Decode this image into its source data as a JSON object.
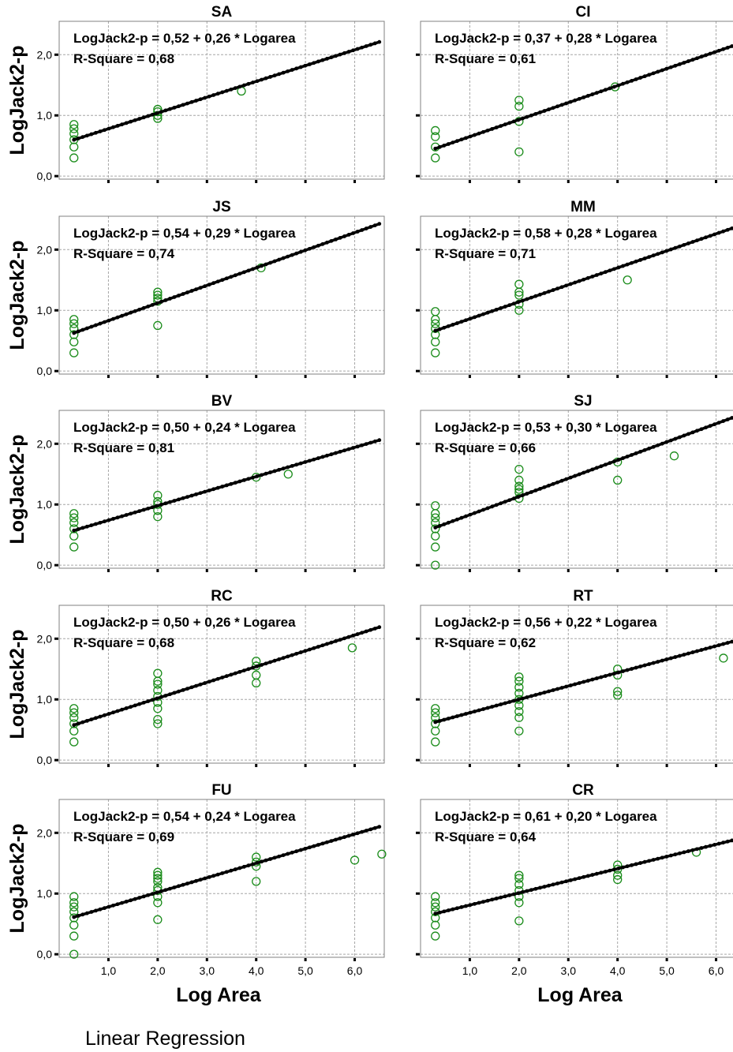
{
  "footer": {
    "caption": "Linear Regression"
  },
  "axis_text": {
    "ylabel": "LogJack2-p",
    "xlabel": "Log Area",
    "y_ticks": [
      {
        "value": 0.0,
        "label": "0,0"
      },
      {
        "value": 1.0,
        "label": "1,0"
      },
      {
        "value": 2.0,
        "label": "2,0"
      }
    ],
    "x_ticks": [
      {
        "value": 1.0,
        "label": "1,0"
      },
      {
        "value": 2.0,
        "label": "2,0"
      },
      {
        "value": 3.0,
        "label": "3,0"
      },
      {
        "value": 4.0,
        "label": "4,0"
      },
      {
        "value": 5.0,
        "label": "5,0"
      },
      {
        "value": 6.0,
        "label": "6,0"
      }
    ]
  },
  "chart_data": {
    "type": "scatter",
    "layout": "5x2 small multiples",
    "xlim": [
      0.0,
      6.6
    ],
    "ylim": [
      -0.05,
      2.55
    ],
    "grid": true,
    "panels": [
      {
        "title": "SA",
        "equation": "LogJack2-p = 0,52 + 0,26 * Logarea",
        "r_square": "R-Square = 0,68",
        "intercept": 0.52,
        "slope": 0.26,
        "fit_x_range": [
          0.3,
          6.5
        ],
        "points": [
          [
            0.3,
            0.3
          ],
          [
            0.3,
            0.48
          ],
          [
            0.3,
            0.6
          ],
          [
            0.3,
            0.7
          ],
          [
            0.3,
            0.78
          ],
          [
            0.3,
            0.85
          ],
          [
            2.0,
            0.95
          ],
          [
            2.0,
            1.0
          ],
          [
            2.0,
            1.06
          ],
          [
            2.0,
            1.1
          ],
          [
            3.7,
            1.4
          ]
        ]
      },
      {
        "title": "CI",
        "equation": "LogJack2-p = 0,37 + 0,28 * Logarea",
        "r_square": "R-Square = 0,61",
        "intercept": 0.37,
        "slope": 0.28,
        "fit_x_range": [
          0.3,
          6.5
        ],
        "points": [
          [
            0.3,
            0.3
          ],
          [
            0.3,
            0.48
          ],
          [
            0.3,
            0.65
          ],
          [
            0.3,
            0.75
          ],
          [
            2.0,
            0.4
          ],
          [
            2.0,
            0.9
          ],
          [
            2.0,
            1.15
          ],
          [
            2.0,
            1.25
          ],
          [
            3.95,
            1.47
          ]
        ]
      },
      {
        "title": "JS",
        "equation": "LogJack2-p = 0,54 + 0,29 * Logarea",
        "r_square": "R-Square = 0,74",
        "intercept": 0.54,
        "slope": 0.29,
        "fit_x_range": [
          0.3,
          6.5
        ],
        "points": [
          [
            0.3,
            0.3
          ],
          [
            0.3,
            0.48
          ],
          [
            0.3,
            0.6
          ],
          [
            0.3,
            0.7
          ],
          [
            0.3,
            0.78
          ],
          [
            0.3,
            0.85
          ],
          [
            2.0,
            0.75
          ],
          [
            2.0,
            1.15
          ],
          [
            2.0,
            1.2
          ],
          [
            2.0,
            1.25
          ],
          [
            2.0,
            1.3
          ],
          [
            4.1,
            1.7
          ]
        ]
      },
      {
        "title": "MM",
        "equation": "LogJack2-p = 0,58 + 0,28 * Logarea",
        "r_square": "R-Square = 0,71",
        "intercept": 0.58,
        "slope": 0.28,
        "fit_x_range": [
          0.3,
          6.5
        ],
        "points": [
          [
            0.3,
            0.3
          ],
          [
            0.3,
            0.48
          ],
          [
            0.3,
            0.6
          ],
          [
            0.3,
            0.7
          ],
          [
            0.3,
            0.78
          ],
          [
            0.3,
            0.85
          ],
          [
            0.3,
            0.98
          ],
          [
            2.0,
            1.0
          ],
          [
            2.0,
            1.1
          ],
          [
            2.0,
            1.25
          ],
          [
            2.0,
            1.3
          ],
          [
            2.0,
            1.43
          ],
          [
            4.2,
            1.5
          ]
        ]
      },
      {
        "title": "BV",
        "equation": "LogJack2-p = 0,50 + 0,24 * Logarea",
        "r_square": "R-Square = 0,81",
        "intercept": 0.5,
        "slope": 0.24,
        "fit_x_range": [
          0.3,
          6.5
        ],
        "points": [
          [
            0.3,
            0.3
          ],
          [
            0.3,
            0.48
          ],
          [
            0.3,
            0.6
          ],
          [
            0.3,
            0.7
          ],
          [
            0.3,
            0.78
          ],
          [
            0.3,
            0.85
          ],
          [
            2.0,
            0.8
          ],
          [
            2.0,
            0.9
          ],
          [
            2.0,
            1.0
          ],
          [
            2.0,
            1.05
          ],
          [
            2.0,
            1.15
          ],
          [
            4.0,
            1.45
          ],
          [
            4.65,
            1.5
          ]
        ]
      },
      {
        "title": "SJ",
        "equation": "LogJack2-p = 0,53 + 0,30 * Logarea",
        "r_square": "R-Square = 0,66",
        "intercept": 0.53,
        "slope": 0.3,
        "fit_x_range": [
          0.3,
          6.5
        ],
        "points": [
          [
            0.3,
            0.0
          ],
          [
            0.3,
            0.3
          ],
          [
            0.3,
            0.48
          ],
          [
            0.3,
            0.6
          ],
          [
            0.3,
            0.7
          ],
          [
            0.3,
            0.78
          ],
          [
            0.3,
            0.85
          ],
          [
            0.3,
            0.98
          ],
          [
            2.0,
            1.1
          ],
          [
            2.0,
            1.2
          ],
          [
            2.0,
            1.25
          ],
          [
            2.0,
            1.3
          ],
          [
            2.0,
            1.4
          ],
          [
            2.0,
            1.58
          ],
          [
            4.0,
            1.4
          ],
          [
            4.0,
            1.7
          ],
          [
            5.15,
            1.8
          ]
        ]
      },
      {
        "title": "RC",
        "equation": "LogJack2-p = 0,50 + 0,26 * Logarea",
        "r_square": "R-Square = 0,68",
        "intercept": 0.5,
        "slope": 0.26,
        "fit_x_range": [
          0.3,
          6.5
        ],
        "points": [
          [
            0.3,
            0.3
          ],
          [
            0.3,
            0.48
          ],
          [
            0.3,
            0.6
          ],
          [
            0.3,
            0.7
          ],
          [
            0.3,
            0.78
          ],
          [
            0.3,
            0.85
          ],
          [
            2.0,
            0.6
          ],
          [
            2.0,
            0.67
          ],
          [
            2.0,
            0.85
          ],
          [
            2.0,
            0.95
          ],
          [
            2.0,
            1.05
          ],
          [
            2.0,
            1.15
          ],
          [
            2.0,
            1.25
          ],
          [
            2.0,
            1.3
          ],
          [
            2.0,
            1.43
          ],
          [
            4.0,
            1.27
          ],
          [
            4.0,
            1.4
          ],
          [
            4.0,
            1.55
          ],
          [
            4.0,
            1.63
          ],
          [
            5.95,
            1.85
          ]
        ]
      },
      {
        "title": "RT",
        "equation": "LogJack2-p = 0,56 + 0,22 * Logarea",
        "r_square": "R-Square = 0,62",
        "intercept": 0.56,
        "slope": 0.22,
        "fit_x_range": [
          0.3,
          6.5
        ],
        "points": [
          [
            0.3,
            0.3
          ],
          [
            0.3,
            0.48
          ],
          [
            0.3,
            0.6
          ],
          [
            0.3,
            0.7
          ],
          [
            0.3,
            0.78
          ],
          [
            0.3,
            0.85
          ],
          [
            2.0,
            0.48
          ],
          [
            2.0,
            0.7
          ],
          [
            2.0,
            0.8
          ],
          [
            2.0,
            0.9
          ],
          [
            2.0,
            1.0
          ],
          [
            2.0,
            1.1
          ],
          [
            2.0,
            1.2
          ],
          [
            2.0,
            1.3
          ],
          [
            2.0,
            1.37
          ],
          [
            4.0,
            1.07
          ],
          [
            4.0,
            1.13
          ],
          [
            4.0,
            1.4
          ],
          [
            4.0,
            1.5
          ],
          [
            6.15,
            1.68
          ]
        ]
      },
      {
        "title": "FU",
        "equation": "LogJack2-p = 0,54 + 0,24 * Logarea",
        "r_square": "R-Square = 0,69",
        "intercept": 0.54,
        "slope": 0.24,
        "fit_x_range": [
          0.3,
          6.5
        ],
        "points": [
          [
            0.3,
            0.0
          ],
          [
            0.3,
            0.3
          ],
          [
            0.3,
            0.48
          ],
          [
            0.3,
            0.6
          ],
          [
            0.3,
            0.7
          ],
          [
            0.3,
            0.78
          ],
          [
            0.3,
            0.85
          ],
          [
            0.3,
            0.95
          ],
          [
            2.0,
            0.57
          ],
          [
            2.0,
            0.85
          ],
          [
            2.0,
            0.95
          ],
          [
            2.0,
            1.05
          ],
          [
            2.0,
            1.1
          ],
          [
            2.0,
            1.2
          ],
          [
            2.0,
            1.25
          ],
          [
            2.0,
            1.3
          ],
          [
            2.0,
            1.35
          ],
          [
            4.0,
            1.2
          ],
          [
            4.0,
            1.45
          ],
          [
            4.0,
            1.52
          ],
          [
            4.0,
            1.6
          ],
          [
            6.0,
            1.55
          ],
          [
            6.55,
            1.65
          ]
        ]
      },
      {
        "title": "CR",
        "equation": "LogJack2-p = 0,61 + 0,20 * Logarea",
        "r_square": "R-Square = 0,64",
        "intercept": 0.61,
        "slope": 0.2,
        "fit_x_range": [
          0.3,
          6.5
        ],
        "points": [
          [
            0.3,
            0.3
          ],
          [
            0.3,
            0.48
          ],
          [
            0.3,
            0.6
          ],
          [
            0.3,
            0.7
          ],
          [
            0.3,
            0.78
          ],
          [
            0.3,
            0.85
          ],
          [
            0.3,
            0.95
          ],
          [
            2.0,
            0.55
          ],
          [
            2.0,
            0.85
          ],
          [
            2.0,
            0.95
          ],
          [
            2.0,
            1.05
          ],
          [
            2.0,
            1.15
          ],
          [
            2.0,
            1.25
          ],
          [
            2.0,
            1.3
          ],
          [
            4.0,
            1.23
          ],
          [
            4.0,
            1.3
          ],
          [
            4.0,
            1.4
          ],
          [
            4.0,
            1.47
          ],
          [
            5.6,
            1.68
          ]
        ]
      }
    ]
  },
  "colors": {
    "points": "#1a8c1a",
    "fit_line": "#000000",
    "grid": "#a6a6a6",
    "frame": "#808080"
  }
}
